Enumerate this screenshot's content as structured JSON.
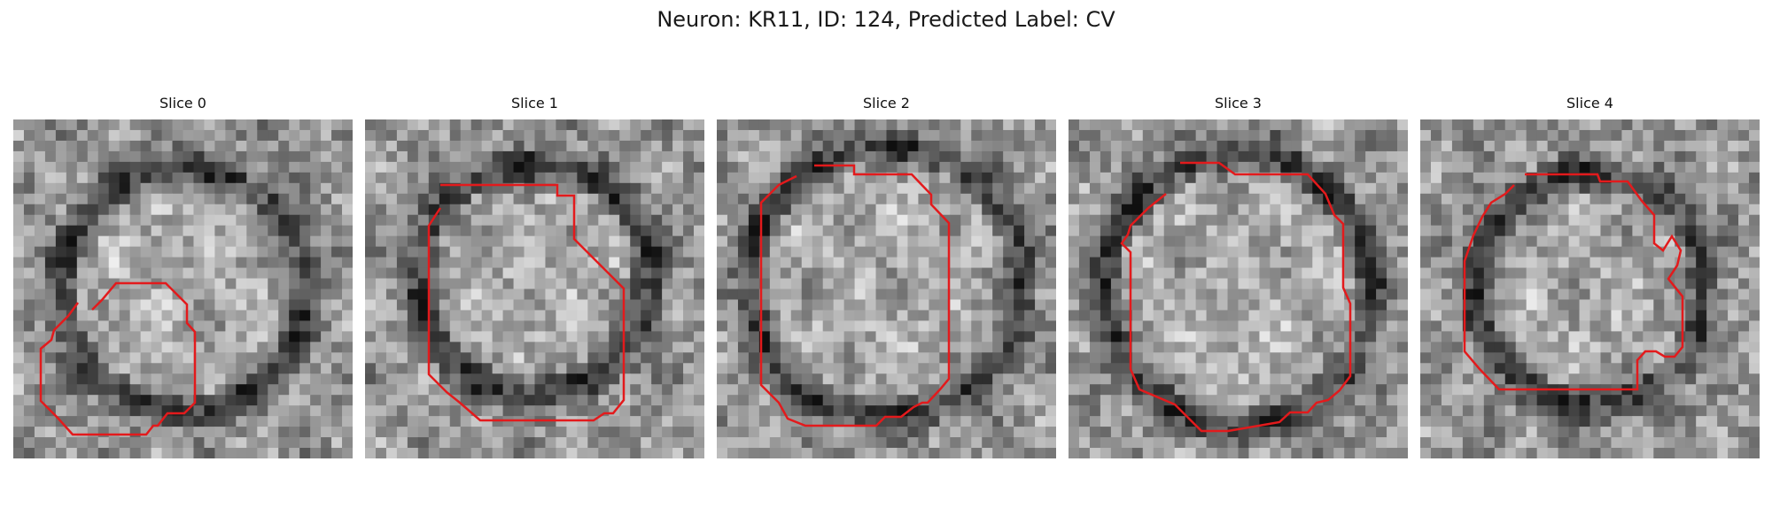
{
  "figure": {
    "title": "Neuron: KR11, ID: 124, Predicted Label: CV"
  },
  "panels": [
    {
      "title": "Slice 0",
      "seed": 11,
      "center": [
        0.5,
        0.5
      ],
      "ring_radius": 0.36,
      "contour_color": "#e31a1c"
    },
    {
      "title": "Slice 1",
      "seed": 23,
      "center": [
        0.5,
        0.47
      ],
      "ring_radius": 0.34,
      "contour_color": "#e31a1c"
    },
    {
      "title": "Slice 2",
      "seed": 37,
      "center": [
        0.5,
        0.48
      ],
      "ring_radius": 0.4,
      "contour_color": "#e31a1c"
    },
    {
      "title": "Slice 3",
      "seed": 51,
      "center": [
        0.5,
        0.5
      ],
      "ring_radius": 0.4,
      "contour_color": "#e31a1c"
    },
    {
      "title": "Slice 4",
      "seed": 67,
      "center": [
        0.5,
        0.5
      ],
      "ring_radius": 0.34,
      "contour_color": "#e31a1c"
    }
  ]
}
